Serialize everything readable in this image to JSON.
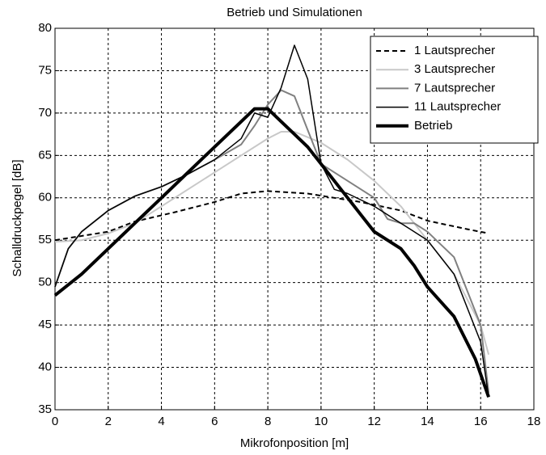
{
  "chart_data": {
    "type": "line",
    "title": "Betrieb und Simulationen",
    "xlabel": "Mikrofonposition [m]",
    "ylabel": "Schalldruckpegel [dB]",
    "xlim": [
      0,
      18
    ],
    "xticks": [
      0,
      2,
      4,
      6,
      8,
      10,
      12,
      14,
      16,
      18
    ],
    "ylim": [
      35,
      80
    ],
    "yticks": [
      35,
      40,
      45,
      50,
      55,
      60,
      65,
      70,
      75,
      80
    ],
    "grid": true,
    "legend": "upper right",
    "series": [
      {
        "name": "1 Lautsprecher",
        "color": "#000000",
        "linestyle": "dashed",
        "linewidth": 2,
        "x": [
          0,
          2,
          3,
          4.5,
          6,
          7,
          8,
          9.5,
          10.5,
          11.5,
          13,
          14,
          15.5,
          16.3
        ],
        "values": [
          55,
          56,
          57.2,
          58.3,
          59.5,
          60.5,
          60.8,
          60.5,
          60,
          59.5,
          58.5,
          57.3,
          56.3,
          55.8
        ]
      },
      {
        "name": "3 Lautsprecher",
        "color": "#c8c8c8",
        "linestyle": "solid",
        "linewidth": 2,
        "x": [
          0,
          1,
          2,
          3,
          4,
          5,
          6,
          7,
          8,
          8.5,
          9,
          10,
          11,
          12,
          13,
          14,
          15,
          16,
          16.3
        ],
        "values": [
          54.8,
          55,
          55.8,
          57,
          59,
          61,
          63,
          65,
          67,
          67.8,
          67.8,
          66.5,
          64.5,
          62,
          59,
          55,
          51,
          45,
          41.5
        ]
      },
      {
        "name": "7 Lautsprecher",
        "color": "#808080",
        "linestyle": "solid",
        "linewidth": 2,
        "x": [
          0,
          0.5,
          1,
          2,
          3,
          4,
          5,
          6,
          7,
          7.5,
          8,
          8.5,
          9,
          9.5,
          10,
          11,
          12,
          12.5,
          13,
          13.5,
          14,
          15,
          16,
          16.3
        ],
        "values": [
          49.5,
          54,
          56,
          58.5,
          60.2,
          61.3,
          62.8,
          64.5,
          66.3,
          68.5,
          71,
          72.7,
          72,
          68,
          64,
          62,
          60,
          57.5,
          57,
          57,
          56,
          53,
          45,
          37
        ]
      },
      {
        "name": "11 Lautsprecher",
        "color": "#000000",
        "linestyle": "solid",
        "linewidth": 1.5,
        "x": [
          0,
          0.5,
          1,
          2,
          3,
          4,
          5,
          6,
          7,
          7.5,
          8,
          8.5,
          9,
          9.5,
          10,
          10.5,
          11,
          12,
          13,
          14,
          15,
          16,
          16.3
        ],
        "values": [
          49.5,
          54,
          56,
          58.5,
          60.2,
          61.3,
          62.8,
          64.5,
          67,
          70,
          69.5,
          73,
          78,
          74,
          64,
          61,
          60.5,
          59,
          57,
          55,
          51,
          43,
          36.5
        ]
      },
      {
        "name": "Betrieb",
        "color": "#000000",
        "linestyle": "solid",
        "linewidth": 4,
        "x": [
          0,
          1,
          2,
          3,
          4,
          5,
          6,
          7,
          7.5,
          8,
          8.5,
          9,
          9.5,
          10,
          10.5,
          11,
          11.5,
          12,
          13,
          13.5,
          14,
          15,
          15.8,
          16.3
        ],
        "values": [
          48.5,
          51,
          54,
          57,
          60,
          63,
          66,
          69,
          70.5,
          70.5,
          69,
          67.5,
          66,
          64,
          62,
          60,
          58,
          56,
          54,
          52,
          49.5,
          46,
          41,
          36.5
        ]
      }
    ]
  }
}
